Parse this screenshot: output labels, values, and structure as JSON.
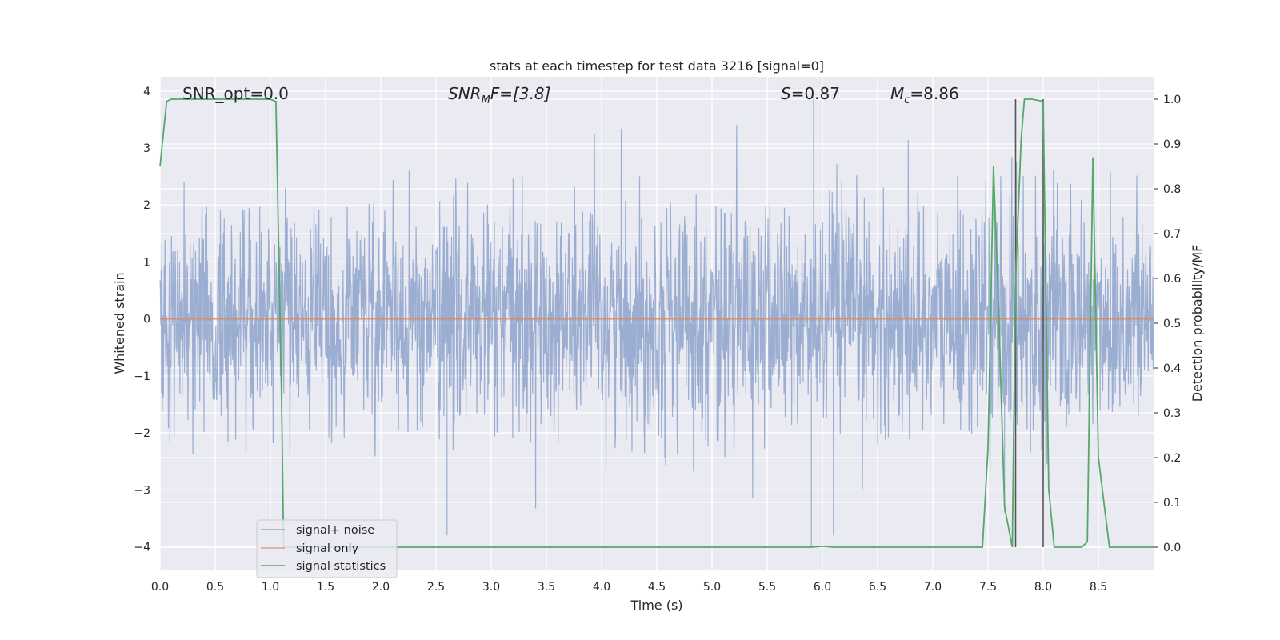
{
  "chart_data": {
    "type": "line",
    "title": "stats at each timestep for test data 3216 [signal=0]",
    "xlabel": "Time (s)",
    "ylabel_left": "Whitened strain",
    "ylabel_right": "Detection probability/MF",
    "xlim": [
      0.0,
      9.0
    ],
    "ylim_left": [
      -4.4,
      4.25
    ],
    "ylim_right": [
      -0.05,
      1.05
    ],
    "x_ticks": [
      "0.0",
      "0.5",
      "1.0",
      "1.5",
      "2.0",
      "2.5",
      "3.0",
      "3.5",
      "4.0",
      "4.5",
      "5.0",
      "5.5",
      "6.0",
      "6.5",
      "7.0",
      "7.5",
      "8.0",
      "8.5"
    ],
    "x_tick_values": [
      0.0,
      0.5,
      1.0,
      1.5,
      2.0,
      2.5,
      3.0,
      3.5,
      4.0,
      4.5,
      5.0,
      5.5,
      6.0,
      6.5,
      7.0,
      7.5,
      8.0,
      8.5
    ],
    "y_left_ticks": [
      "4",
      "3",
      "2",
      "1",
      "0",
      "−1",
      "−2",
      "−3",
      "−4"
    ],
    "y_left_tick_values": [
      4,
      3,
      2,
      1,
      0,
      -1,
      -2,
      -3,
      -4
    ],
    "y_right_ticks": [
      "1.0",
      "0.9",
      "0.8",
      "0.7",
      "0.6",
      "0.5",
      "0.4",
      "0.3",
      "0.2",
      "0.1",
      "0.0"
    ],
    "y_right_tick_values": [
      1.0,
      0.9,
      0.8,
      0.7,
      0.6,
      0.5,
      0.4,
      0.3,
      0.2,
      0.1,
      0.0
    ],
    "grid": true,
    "legend_position": "lower-left",
    "annotations": {
      "snr_opt": "SNR_opt=0.0",
      "snr_mf_main": "SNR",
      "snr_mf_sub": "M",
      "snr_mf_rest": "F=[3.8]",
      "s_main": "S",
      "s_rest": "=0.87",
      "mc_main": "M",
      "mc_sub": "c",
      "mc_rest": "=8.86"
    },
    "series": [
      {
        "name": "signal+ noise",
        "color": "#4c72b0",
        "axis": "left",
        "note": "white-noise strain, roughly within -2.5 to 3.5 with spikes",
        "noise_envelope": [
          -2.0,
          2.0
        ],
        "notable_spikes": [
          [
            5.9,
            -4.0
          ],
          [
            5.92,
            3.9
          ],
          [
            6.1,
            -3.8
          ],
          [
            2.6,
            -3.8
          ],
          [
            7.65,
            -3.4
          ]
        ]
      },
      {
        "name": "signal only",
        "color": "#dd8452",
        "axis": "left",
        "x": [
          0.0,
          9.0
        ],
        "y": [
          0.0,
          0.0
        ]
      },
      {
        "name": "signal statistics",
        "color": "#55a868",
        "axis": "right",
        "x": [
          0.0,
          0.06,
          0.1,
          0.2,
          0.5,
          0.8,
          1.0,
          1.05,
          1.1,
          1.12,
          1.2,
          2.0,
          3.0,
          4.0,
          5.0,
          5.9,
          6.0,
          6.1,
          6.5,
          7.0,
          7.45,
          7.5,
          7.55,
          7.6,
          7.65,
          7.72,
          7.75,
          7.8,
          7.83,
          7.9,
          8.0,
          8.05,
          8.1,
          8.2,
          8.35,
          8.4,
          8.45,
          8.5,
          8.6,
          9.0
        ],
        "y": [
          0.85,
          0.995,
          1.0,
          1.0,
          1.0,
          1.0,
          1.0,
          0.995,
          0.35,
          0.0,
          0.0,
          0.0,
          0.0,
          0.0,
          0.0,
          0.0,
          0.002,
          0.0,
          0.0,
          0.0,
          0.0,
          0.22,
          0.85,
          0.5,
          0.09,
          0.0,
          0.6,
          0.91,
          1.0,
          1.0,
          0.995,
          0.13,
          0.0,
          0.0,
          0.0,
          0.012,
          0.87,
          0.2,
          0.0,
          0.0
        ]
      },
      {
        "name": "",
        "color": "#555555",
        "axis": "right",
        "style": "vertical-markers",
        "x": [
          7.75,
          8.0
        ],
        "y_range": [
          0.0,
          1.0
        ]
      }
    ]
  }
}
